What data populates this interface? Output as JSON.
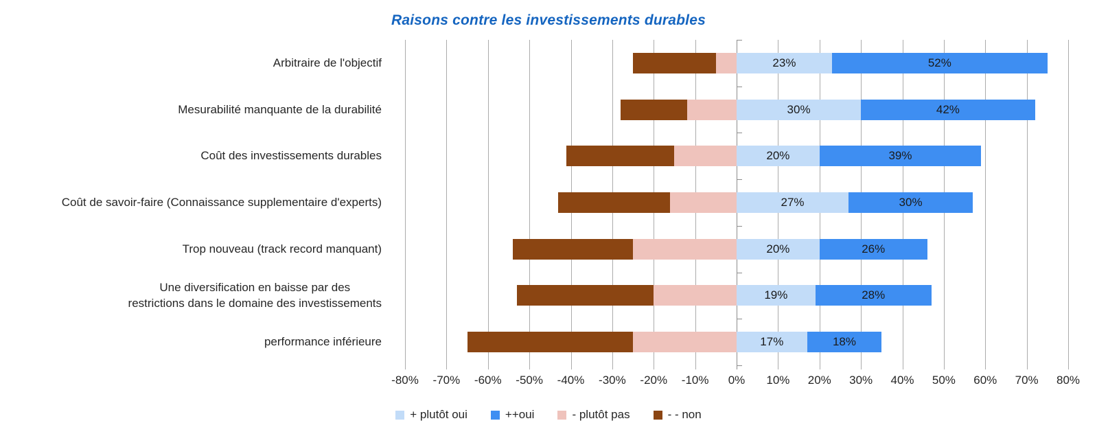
{
  "title": "Raisons contre les investissements durables",
  "colors": {
    "title": "#1565C0",
    "gridline": "#ABABAB",
    "zero_axis": "#8C8C8C",
    "plutot_oui": "#C2DCF8",
    "oui": "#3E8EF2",
    "plutot_pas": "#EFC3BC",
    "non": "#8B4512"
  },
  "chart_data": {
    "type": "bar",
    "variant": "horizontal-diverging-stacked",
    "title": "Raisons contre les investissements durables",
    "categories": [
      "Arbitraire de l'objectif",
      "Mesurabilité manquante de la durabilité",
      "Coût des investissements durables",
      "Coût de savoir-faire (Connaissance supplementaire d'experts)",
      "Trop nouveau (track record manquant)",
      "Une diversification en baisse par des\nrestrictions dans le domaine des investissements",
      "performance inférieure"
    ],
    "series": [
      {
        "name": "+ plutôt oui",
        "slug": "plutot-oui",
        "color": "#C2DCF8",
        "show_labels": true,
        "values": [
          23,
          30,
          20,
          27,
          20,
          19,
          17
        ]
      },
      {
        "name": "++oui",
        "slug": "oui",
        "color": "#3E8EF2",
        "show_labels": true,
        "values": [
          52,
          42,
          39,
          30,
          26,
          28,
          18
        ]
      },
      {
        "name": "- plutôt pas",
        "slug": "plutot-pas",
        "color": "#EFC3BC",
        "show_labels": false,
        "values": [
          -5,
          -12,
          -15,
          -16,
          -25,
          -20,
          -25
        ]
      },
      {
        "name": "- - non",
        "slug": "non",
        "color": "#8B4512",
        "show_labels": false,
        "values": [
          -20,
          -16,
          -26,
          -27,
          -29,
          -33,
          -40
        ]
      }
    ],
    "xlim": [
      -80,
      80
    ],
    "xtick_step": 10,
    "xtick_labels": [
      "-80%",
      "-70%",
      "-60%",
      "-50%",
      "-40%",
      "-30%",
      "-20%",
      "-10%",
      "0%",
      "10%",
      "20%",
      "30%",
      "40%",
      "50%",
      "60%",
      "70%",
      "80%"
    ],
    "grid": true,
    "legend_position": "bottom",
    "value_label_format": "{v}%"
  },
  "legend": {
    "items": [
      {
        "label": "+ plutôt oui",
        "color": "#C2DCF8"
      },
      {
        "label": "++oui",
        "color": "#3E8EF2"
      },
      {
        "label": "- plutôt pas",
        "color": "#EFC3BC"
      },
      {
        "label": "- - non",
        "color": "#8B4512"
      }
    ]
  }
}
